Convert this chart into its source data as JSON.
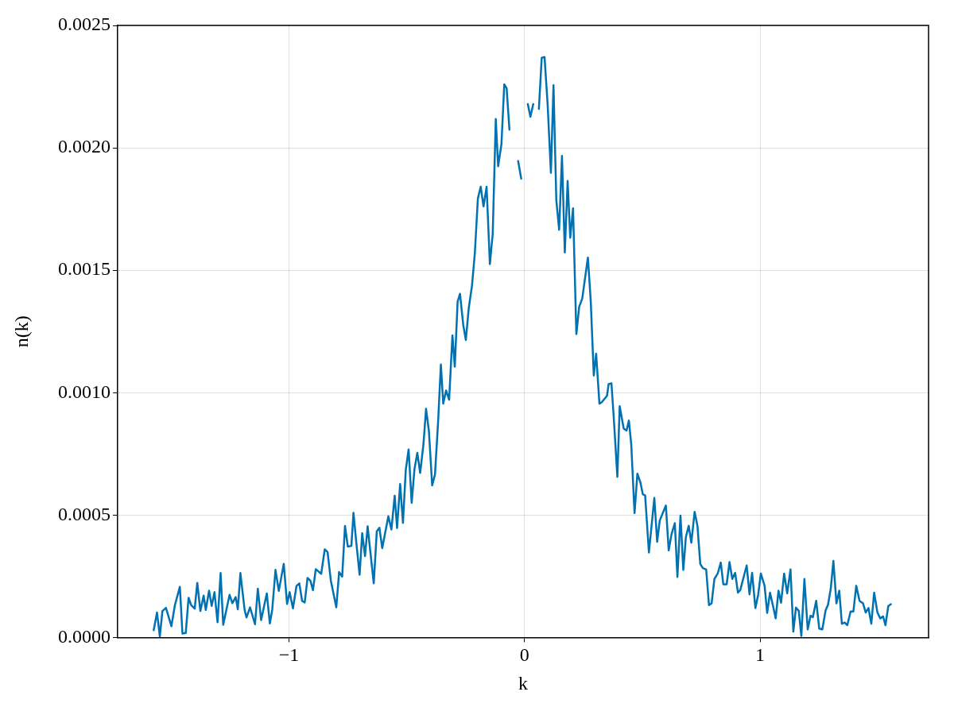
{
  "chart_data": {
    "type": "line",
    "xlabel": "k",
    "ylabel": "n(k)",
    "xlim": [
      -1.727,
      1.715
    ],
    "xticks": [
      {
        "value": -1,
        "label": "−1"
      },
      0,
      1
    ],
    "ylim": [
      0,
      0.0025
    ],
    "yticks": [
      {
        "value": 0,
        "label": "0.0000"
      },
      {
        "value": 0.0005,
        "label": "0.0005"
      },
      {
        "value": 0.001,
        "label": "0.0010"
      },
      {
        "value": 0.0015,
        "label": "0.0015"
      },
      {
        "value": 0.002,
        "label": "0.0020"
      },
      {
        "value": 0.0025,
        "label": "0.0025"
      }
    ],
    "grid": true,
    "legend": false,
    "marker": "none",
    "line_style": "solid",
    "series": [
      {
        "color": "#0072b2",
        "x": [
          -1.574,
          -1.56,
          -1.548,
          -1.537,
          -1.522,
          -1.499,
          -1.484,
          -1.463,
          -1.452,
          -1.438,
          -1.426,
          -1.415,
          -1.4,
          -1.389,
          -1.376,
          -1.362,
          -1.353,
          -1.339,
          -1.328,
          -1.316,
          -1.303,
          -1.29,
          -1.279,
          -1.252,
          -1.24,
          -1.226,
          -1.217,
          -1.206,
          -1.188,
          -1.18,
          -1.165,
          -1.144,
          -1.132,
          -1.118,
          -1.094,
          -1.081,
          -1.071,
          -1.057,
          -1.043,
          -1.022,
          -1.008,
          -0.997,
          -0.983,
          -0.968,
          -0.956,
          -0.944,
          -0.933,
          -0.921,
          -0.909,
          -0.898,
          -0.886,
          -0.863,
          -0.848,
          -0.836,
          -0.822,
          -0.799,
          -0.787,
          -0.774,
          -0.762,
          -0.75,
          -0.735,
          -0.726,
          -0.714,
          -0.7,
          -0.689,
          -0.677,
          -0.666,
          -0.64,
          -0.627,
          -0.616,
          -0.604,
          -0.578,
          -0.565,
          -0.551,
          -0.541,
          -0.528,
          -0.516,
          -0.504,
          -0.492,
          -0.479,
          -0.467,
          -0.455,
          -0.443,
          -0.429,
          -0.418,
          -0.406,
          -0.392,
          -0.38,
          -0.367,
          -0.355,
          -0.345,
          -0.333,
          -0.32,
          -0.306,
          -0.296,
          -0.284,
          -0.274,
          -0.26,
          -0.249,
          -0.237,
          -0.223,
          -0.211,
          -0.198,
          -0.186,
          -0.174,
          -0.161,
          -0.147,
          -0.135,
          -0.122,
          -0.112,
          -0.098,
          -0.086,
          -0.076,
          -0.064,
          -0.046,
          -0.027,
          -0.014,
          -0.002,
          0.014,
          0.025,
          0.037,
          0.049,
          0.061,
          0.073,
          0.085,
          0.098,
          0.112,
          0.123,
          0.135,
          0.147,
          0.159,
          0.171,
          0.183,
          0.194,
          0.206,
          0.22,
          0.232,
          0.245,
          0.269,
          0.281,
          0.294,
          0.304,
          0.318,
          0.328,
          0.35,
          0.357,
          0.369,
          0.379,
          0.394,
          0.404,
          0.421,
          0.433,
          0.443,
          0.453,
          0.467,
          0.479,
          0.492,
          0.502,
          0.512,
          0.528,
          0.551,
          0.563,
          0.574,
          0.6,
          0.612,
          0.624,
          0.638,
          0.649,
          0.662,
          0.674,
          0.685,
          0.697,
          0.708,
          0.722,
          0.734,
          0.746,
          0.757,
          0.771,
          0.783,
          0.794,
          0.806,
          0.82,
          0.833,
          0.844,
          0.858,
          0.87,
          0.882,
          0.894,
          0.906,
          0.916,
          0.928,
          0.943,
          0.955,
          0.966,
          0.98,
          0.992,
          1.003,
          1.019,
          1.03,
          1.042,
          1.055,
          1.066,
          1.078,
          1.089,
          1.102,
          1.115,
          1.129,
          1.141,
          1.152,
          1.164,
          1.175,
          1.188,
          1.202,
          1.214,
          1.224,
          1.238,
          1.251,
          1.264,
          1.278,
          1.288,
          1.3,
          1.311,
          1.324,
          1.336,
          1.347,
          1.359,
          1.37,
          1.384,
          1.396,
          1.408,
          1.422,
          1.437,
          1.448,
          1.46,
          1.472,
          1.484,
          1.498,
          1.51,
          1.522,
          1.532,
          1.544,
          1.555
        ],
        "values": [
          3e-05,
          0.000102,
          4e-06,
          0.000108,
          0.000121,
          4.6e-05,
          0.000132,
          0.000207,
          1.6e-05,
          1.8e-05,
          0.000162,
          0.000132,
          0.000118,
          0.000223,
          0.000108,
          0.000171,
          0.000112,
          0.000191,
          0.000129,
          0.000185,
          6.2e-05,
          0.000263,
          5.2e-05,
          0.000174,
          0.00014,
          0.000165,
          0.000115,
          0.000263,
          0.000112,
          8.2e-05,
          0.000123,
          5.4e-05,
          0.000199,
          7.1e-05,
          0.00018,
          5.7e-05,
          0.000112,
          0.000276,
          0.00019,
          0.000301,
          0.000137,
          0.000185,
          0.000119,
          0.00021,
          0.000221,
          0.000149,
          0.000143,
          0.000243,
          0.000232,
          0.000193,
          0.000279,
          0.00026,
          0.00036,
          0.000349,
          0.000232,
          0.000123,
          0.000267,
          0.000249,
          0.000456,
          0.000371,
          0.000374,
          0.000509,
          0.000387,
          0.000256,
          0.000426,
          0.000332,
          0.000454,
          0.000221,
          0.000434,
          0.000448,
          0.000365,
          0.000495,
          0.000441,
          0.000579,
          0.000447,
          0.000627,
          0.000468,
          0.000685,
          0.000768,
          0.00055,
          0.000688,
          0.000754,
          0.000672,
          0.000789,
          0.000934,
          0.000845,
          0.000621,
          0.000666,
          0.000878,
          0.001115,
          0.000955,
          0.001009,
          0.000971,
          0.001234,
          0.001106,
          0.001372,
          0.001404,
          0.001276,
          0.001215,
          0.001343,
          0.001437,
          0.001568,
          0.001793,
          0.001841,
          0.001761,
          0.001841,
          0.001525,
          0.001649,
          0.002118,
          0.001925,
          0.002015,
          0.002259,
          0.002243,
          0.002074,
          null,
          0.001946,
          0.001874,
          null,
          0.002179,
          0.002127,
          0.002179,
          null,
          0.002159,
          0.002368,
          0.002371,
          0.002179,
          0.001898,
          0.002256,
          0.001785,
          0.001665,
          0.001967,
          0.001573,
          0.001865,
          0.001633,
          0.001753,
          0.001239,
          0.001351,
          0.001384,
          0.001552,
          0.001376,
          0.00107,
          0.001159,
          0.000955,
          0.000961,
          0.000987,
          0.001035,
          0.001038,
          0.000894,
          0.000656,
          0.000945,
          0.000853,
          0.000845,
          0.000886,
          0.000789,
          0.000508,
          0.000669,
          0.000633,
          0.000585,
          0.00058,
          0.000347,
          0.00057,
          0.000391,
          0.000478,
          0.000539,
          0.000356,
          0.000422,
          0.000467,
          0.000247,
          0.000498,
          0.000276,
          0.000411,
          0.000456,
          0.000387,
          0.000513,
          0.000456,
          0.0003,
          0.000283,
          0.000278,
          0.000132,
          0.000139,
          0.000239,
          0.000261,
          0.000306,
          0.000217,
          0.000217,
          0.000308,
          0.000239,
          0.000264,
          0.000183,
          0.000194,
          0.000239,
          0.000294,
          0.000176,
          0.000264,
          0.00012,
          0.000176,
          0.000261,
          0.000211,
          0.0001,
          0.000183,
          0.000128,
          7.8e-05,
          0.000191,
          0.000142,
          0.000261,
          0.00018,
          0.000278,
          2.4e-05,
          0.000122,
          0.000109,
          6e-06,
          0.000239,
          3.3e-05,
          8.9e-05,
          8.3e-05,
          0.00015,
          3.6e-05,
          3.3e-05,
          0.000111,
          0.000133,
          0.0002,
          0.000313,
          0.000139,
          0.000191,
          5.6e-05,
          6.1e-05,
          5e-05,
          0.000106,
          0.000106,
          0.000211,
          0.00015,
          0.000139,
          0.000102,
          0.00012,
          5.6e-05,
          0.000183,
          0.000102,
          7.8e-05,
          8.6e-05,
          5e-05,
          0.000128,
          0.000136
        ]
      }
    ]
  }
}
